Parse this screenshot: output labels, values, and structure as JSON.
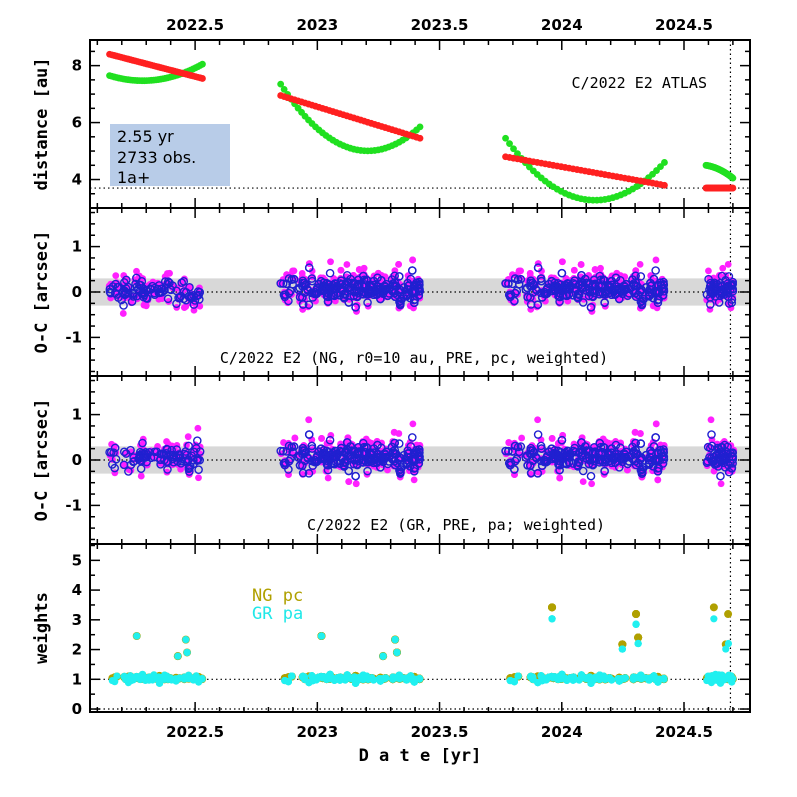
{
  "chart_data": [
    {
      "type": "scatter",
      "panel": "distance",
      "ylabel": "distance [au]",
      "ylim": [
        3.0,
        8.9
      ],
      "yticks": [
        4,
        6,
        8
      ],
      "xlim": [
        2022.07,
        2024.77
      ],
      "top_ticks": [
        "2022.5",
        "2023",
        "2023.5",
        "2024",
        "2024.5"
      ],
      "label": "C/2022 E2 ATLAS",
      "info": [
        "2.55 yr",
        "2733 obs.",
        "1a+"
      ],
      "reference_line_y": 3.7,
      "vertical_line_x": 2024.69,
      "series": [
        {
          "color": "#ff2020",
          "segments": [
            {
              "x": [
                2022.15,
                2022.53
              ],
              "y": [
                8.4,
                7.55
              ]
            },
            {
              "x": [
                2022.85,
                2023.42
              ],
              "y": [
                6.95,
                5.45
              ]
            },
            {
              "x": [
                2023.77,
                2024.42
              ],
              "y": [
                4.8,
                3.8
              ]
            },
            {
              "x": [
                2024.59,
                2024.7
              ],
              "y": [
                3.7,
                3.7
              ]
            }
          ]
        },
        {
          "color": "#20e020",
          "segments": [
            {
              "x": [
                2022.15,
                2022.53
              ],
              "y": [
                7.65,
                8.05
              ]
            },
            {
              "x": [
                2022.85,
                2023.42
              ],
              "y": [
                7.35,
                5.85
              ]
            },
            {
              "x": [
                2023.77,
                2024.42
              ],
              "y": [
                5.45,
                4.6
              ]
            },
            {
              "x": [
                2024.59,
                2024.7
              ],
              "y": [
                4.5,
                4.05
              ]
            }
          ]
        }
      ]
    },
    {
      "type": "scatter",
      "panel": "oc-ng",
      "ylabel": "O-C [arcsec]",
      "ylim": [
        -1.85,
        1.85
      ],
      "yticks": [
        -1,
        0,
        1
      ],
      "label": "C/2022 E2 (NG, r0=10 au, PRE, pc, weighted)",
      "band": [
        -0.3,
        0.3
      ],
      "series": [
        {
          "color": "#ff20ff",
          "marker": "filled"
        },
        {
          "color": "#2020d0",
          "marker": "open"
        }
      ]
    },
    {
      "type": "scatter",
      "panel": "oc-gr",
      "ylabel": "O-C [arcsec]",
      "ylim": [
        -1.85,
        1.85
      ],
      "yticks": [
        -1,
        0,
        1
      ],
      "label": "C/2022 E2 (GR, PRE, pa; weighted)",
      "band": [
        -0.3,
        0.3
      ],
      "series": [
        {
          "color": "#ff20ff",
          "marker": "filled"
        },
        {
          "color": "#2020d0",
          "marker": "open"
        }
      ]
    },
    {
      "type": "scatter",
      "panel": "weights",
      "ylabel": "weights",
      "ylim": [
        -0.1,
        5.55
      ],
      "yticks": [
        0,
        1,
        2,
        3,
        4,
        5
      ],
      "xlabel": "D a t e [yr]",
      "bottom_ticks": [
        "2022.5",
        "2023",
        "2023.5",
        "2024",
        "2024.5"
      ],
      "legend": [
        "NG pc",
        "GR pa"
      ],
      "reference_line_y": 1,
      "series": [
        {
          "name": "NG pc",
          "color": "#b0a000"
        },
        {
          "name": "GR pa",
          "color": "#20f0f0"
        }
      ]
    }
  ]
}
